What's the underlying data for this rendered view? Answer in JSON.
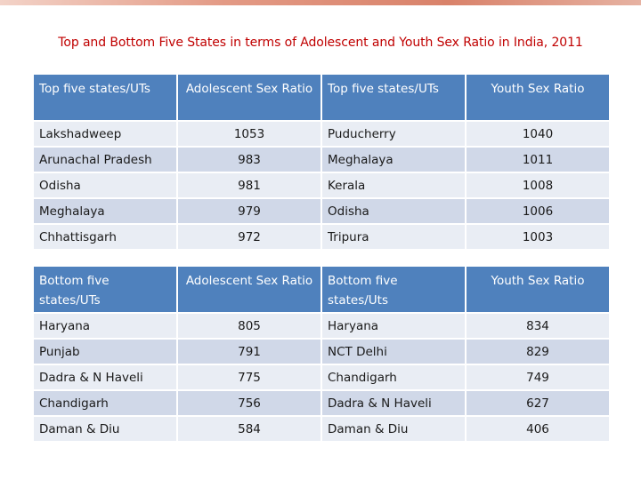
{
  "title": "Top and Bottom Five States in terms of Adolescent and Youth Sex Ratio in India, 2011",
  "colors": {
    "title": "#c00000",
    "header_bg": "#4f81bd",
    "row_light": "#e9edf4",
    "row_dark": "#d0d8e8"
  },
  "top_table": {
    "headers": [
      "Top five states/UTs",
      "Adolescent Sex Ratio",
      "Top five states/UTs",
      "Youth Sex Ratio"
    ],
    "rows": [
      [
        "Lakshadweep",
        "1053",
        "Puducherry",
        "1040"
      ],
      [
        "Arunachal Pradesh",
        "983",
        "Meghalaya",
        "1011"
      ],
      [
        "Odisha",
        "981",
        "Kerala",
        "1008"
      ],
      [
        "Meghalaya",
        "979",
        "Odisha",
        "1006"
      ],
      [
        "Chhattisgarh",
        "972",
        "Tripura",
        "1003"
      ]
    ]
  },
  "bottom_table": {
    "headers": [
      "Bottom five states/UTs",
      "Adolescent Sex Ratio",
      "Bottom five states/Uts",
      "Youth Sex Ratio"
    ],
    "rows": [
      [
        "Haryana",
        "805",
        "Haryana",
        "834"
      ],
      [
        "Punjab",
        "791",
        "NCT Delhi",
        "829"
      ],
      [
        "Dadra & N Haveli",
        "775",
        "Chandigarh",
        "749"
      ],
      [
        "Chandigarh",
        "756",
        "Dadra & N Haveli",
        "627"
      ],
      [
        "Daman & Diu",
        "584",
        "Daman & Diu",
        "406"
      ]
    ]
  }
}
